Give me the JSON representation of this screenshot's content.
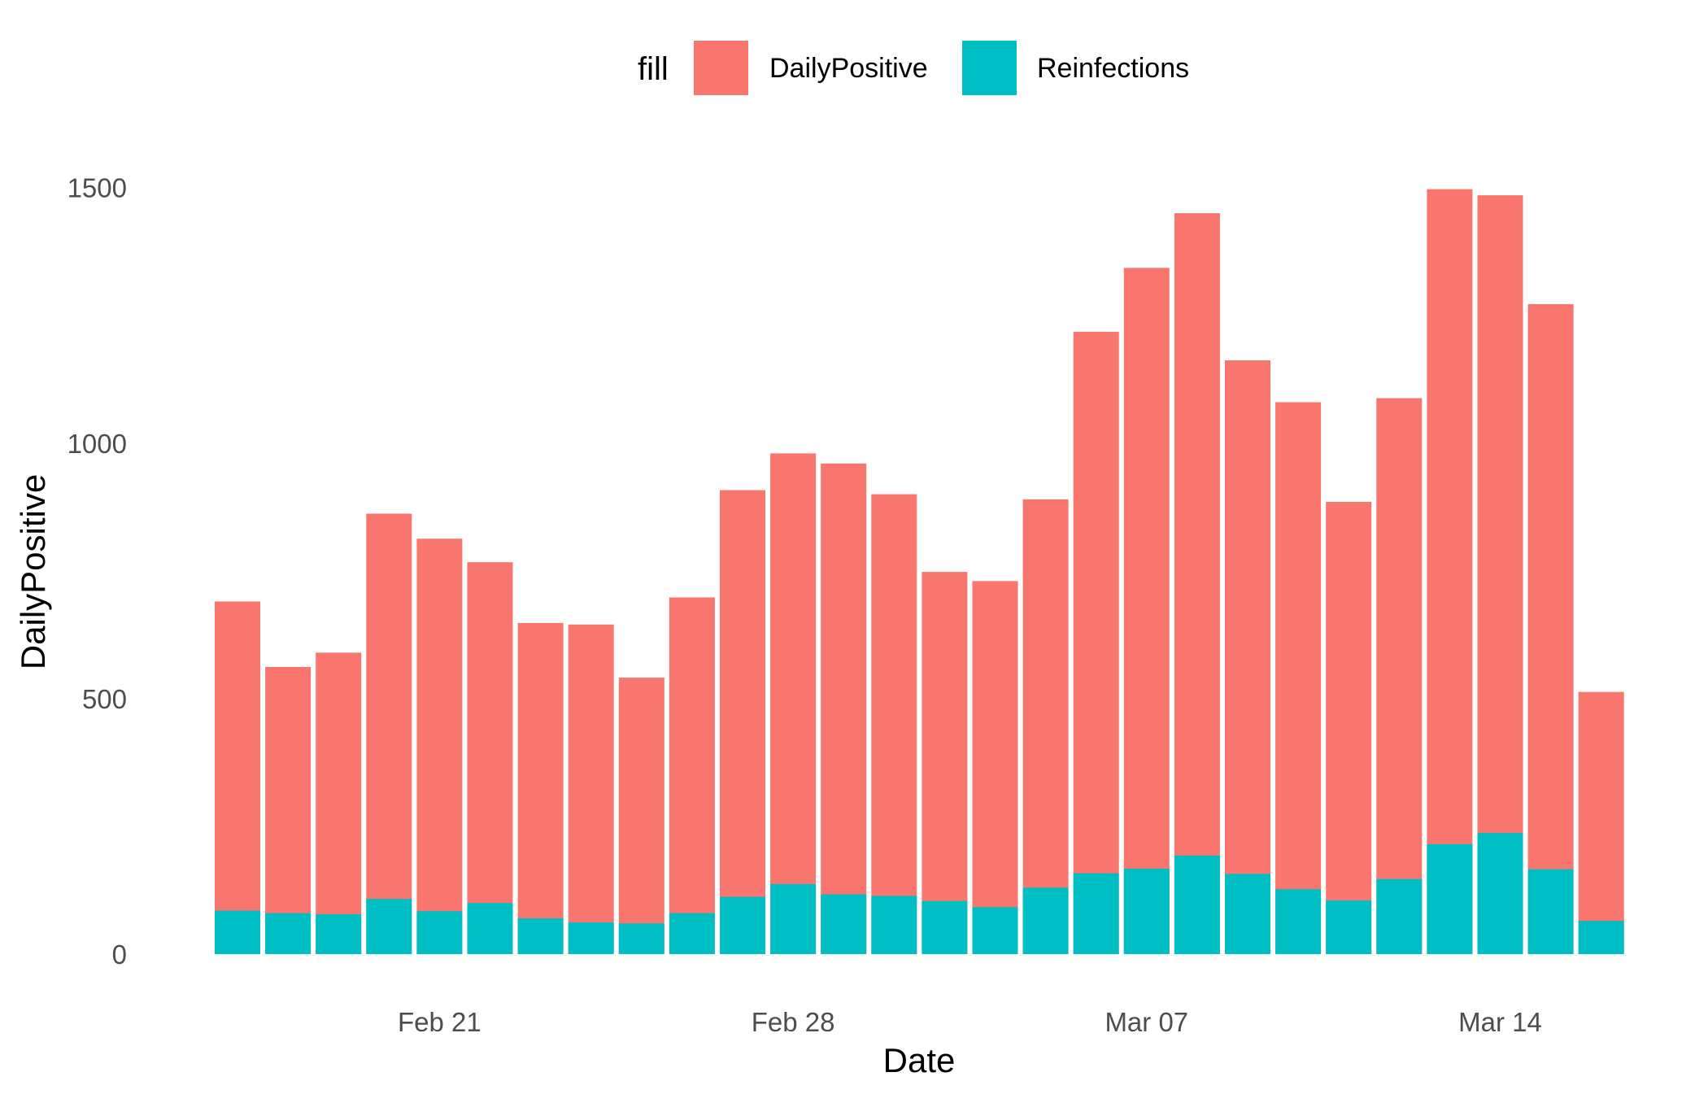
{
  "chart_data": {
    "type": "bar",
    "stacking": "overlay",
    "xlabel": "Date",
    "ylabel": "DailyPositive",
    "ylim": [
      0,
      1620
    ],
    "y_ticks": [
      0,
      500,
      1000,
      1500
    ],
    "x_start_date": "2021-02-17",
    "x_ticks": [
      {
        "date": "2021-02-21",
        "label": "Feb 21"
      },
      {
        "date": "2021-02-28",
        "label": "Feb 28"
      },
      {
        "date": "2021-03-07",
        "label": "Mar 07"
      },
      {
        "date": "2021-03-14",
        "label": "Mar 14"
      }
    ],
    "categories": [
      "2021-02-17",
      "2021-02-18",
      "2021-02-19",
      "2021-02-20",
      "2021-02-21",
      "2021-02-22",
      "2021-02-23",
      "2021-02-24",
      "2021-02-25",
      "2021-02-26",
      "2021-02-27",
      "2021-02-28",
      "2021-03-01",
      "2021-03-02",
      "2021-03-03",
      "2021-03-04",
      "2021-03-05",
      "2021-03-06",
      "2021-03-07",
      "2021-03-08",
      "2021-03-09",
      "2021-03-10",
      "2021-03-11",
      "2021-03-12",
      "2021-03-13",
      "2021-03-14",
      "2021-03-15",
      "2021-03-16"
    ],
    "legend": {
      "title": "fill",
      "position": "top"
    },
    "grid": false,
    "series": [
      {
        "name": "DailyPositive",
        "color": "#F8766D",
        "values": [
          690,
          562,
          590,
          862,
          813,
          767,
          648,
          645,
          541,
          698,
          908,
          980,
          960,
          900,
          748,
          730,
          890,
          1218,
          1343,
          1450,
          1162,
          1080,
          885,
          1088,
          1497,
          1485,
          1272,
          513
        ]
      },
      {
        "name": "Reinfections",
        "color": "#00BFC4",
        "values": [
          85,
          80,
          78,
          108,
          84,
          100,
          70,
          62,
          60,
          80,
          112,
          137,
          117,
          114,
          104,
          92,
          130,
          158,
          167,
          193,
          157,
          127,
          105,
          147,
          215,
          237,
          166,
          65
        ]
      }
    ]
  }
}
